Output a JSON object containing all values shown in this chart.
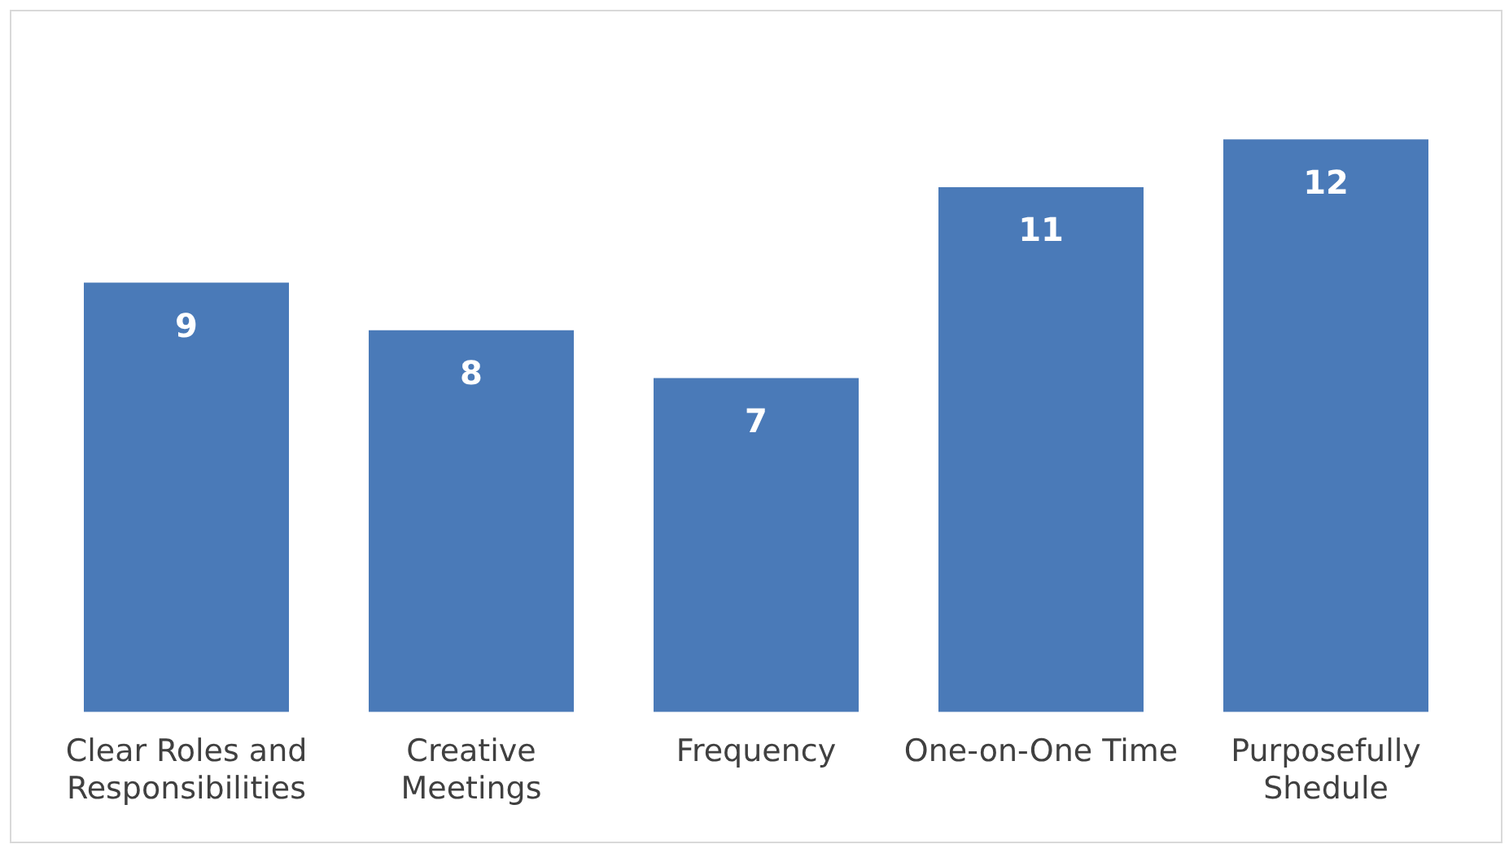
{
  "chart_data": {
    "type": "bar",
    "categories": [
      [
        "Clear Roles and",
        "Responsibilities"
      ],
      [
        "Creative",
        "Meetings"
      ],
      "Frequency",
      "One-on-One Time",
      [
        "Purposefully",
        "Shedule"
      ]
    ],
    "values": [
      9,
      8,
      7,
      11,
      12
    ],
    "color": "#4a7ab8",
    "data_labels": true,
    "grid": false,
    "legend": false
  }
}
